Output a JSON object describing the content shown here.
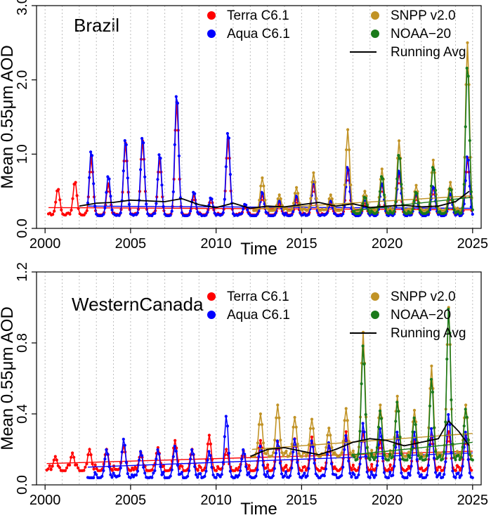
{
  "chart_data": [
    {
      "type": "line",
      "region": "Brazil",
      "xlabel": "Time",
      "ylabel": "Mean 0.55μm AOD",
      "xlim": [
        1999.5,
        2025.5
      ],
      "ylim": [
        0,
        3.0
      ],
      "xticks": [
        "2000",
        "2005",
        "2010",
        "2015",
        "2020",
        "2025"
      ],
      "yticks": [
        "0.0",
        "1.0",
        "2.0",
        "3.0"
      ],
      "legend": [
        "Terra C6.1",
        "Aqua C6.1",
        "SNPP v2.0",
        "NOAA−20",
        "Running Avg"
      ],
      "series": [
        {
          "name": "Terra C6.1",
          "color": "#ff0000",
          "start": 2000.2,
          "end": 2025.0,
          "base": 0.18,
          "peaks": [
            [
              2000.75,
              0.54
            ],
            [
              2001.75,
              0.64
            ],
            [
              2002.7,
              0.95
            ],
            [
              2003.7,
              0.6
            ],
            [
              2004.7,
              1.15
            ],
            [
              2005.7,
              1.18
            ],
            [
              2006.7,
              0.95
            ],
            [
              2007.7,
              1.7
            ],
            [
              2008.7,
              0.45
            ],
            [
              2009.7,
              0.4
            ],
            [
              2010.7,
              1.2
            ],
            [
              2011.7,
              0.3
            ],
            [
              2012.7,
              0.45
            ],
            [
              2013.7,
              0.35
            ],
            [
              2014.7,
              0.4
            ],
            [
              2015.7,
              0.6
            ],
            [
              2016.7,
              0.35
            ],
            [
              2017.7,
              0.8
            ],
            [
              2018.7,
              0.35
            ],
            [
              2019.7,
              0.6
            ],
            [
              2020.7,
              0.75
            ],
            [
              2021.7,
              0.45
            ],
            [
              2022.7,
              0.55
            ],
            [
              2023.7,
              0.45
            ],
            [
              2024.7,
              0.95
            ]
          ],
          "trend": [
            0.28,
            0.25
          ]
        },
        {
          "name": "Aqua C6.1",
          "color": "#0000ff",
          "start": 2002.5,
          "end": 2025.0,
          "base": 0.17,
          "peaks": [
            [
              2002.7,
              1.07
            ],
            [
              2003.7,
              0.72
            ],
            [
              2004.7,
              1.23
            ],
            [
              2005.7,
              1.26
            ],
            [
              2006.7,
              1.03
            ],
            [
              2007.7,
              1.85
            ],
            [
              2008.7,
              0.5
            ],
            [
              2009.7,
              0.42
            ],
            [
              2010.7,
              1.33
            ],
            [
              2011.7,
              0.33
            ],
            [
              2012.7,
              0.5
            ],
            [
              2013.7,
              0.38
            ],
            [
              2014.7,
              0.45
            ],
            [
              2015.7,
              0.65
            ],
            [
              2016.7,
              0.38
            ],
            [
              2017.7,
              0.85
            ],
            [
              2018.7,
              0.38
            ],
            [
              2019.7,
              0.62
            ],
            [
              2020.7,
              0.8
            ],
            [
              2021.7,
              0.48
            ],
            [
              2022.7,
              0.58
            ],
            [
              2023.7,
              0.48
            ],
            [
              2024.7,
              1.0
            ]
          ],
          "trend": [
            0.3,
            0.27
          ]
        },
        {
          "name": "SNPP v2.0",
          "color": "#c19326",
          "start": 2012.2,
          "end": 2025.0,
          "base": 0.24,
          "peaks": [
            [
              2012.7,
              0.68
            ],
            [
              2013.7,
              0.45
            ],
            [
              2014.7,
              0.55
            ],
            [
              2015.7,
              0.75
            ],
            [
              2016.7,
              0.45
            ],
            [
              2017.7,
              1.33
            ],
            [
              2018.7,
              0.5
            ],
            [
              2019.7,
              0.8
            ],
            [
              2020.7,
              1.18
            ],
            [
              2021.7,
              0.58
            ],
            [
              2022.7,
              0.92
            ],
            [
              2023.7,
              0.62
            ],
            [
              2024.7,
              2.5
            ]
          ],
          "trend": [
            0.26,
            0.44
          ]
        },
        {
          "name": "NOAA−20",
          "color": "#1a7a1a",
          "start": 2018.0,
          "end": 2025.0,
          "base": 0.2,
          "peaks": [
            [
              2018.7,
              0.43
            ],
            [
              2019.7,
              0.72
            ],
            [
              2020.7,
              1.02
            ],
            [
              2021.7,
              0.5
            ],
            [
              2022.7,
              0.85
            ],
            [
              2023.7,
              0.55
            ],
            [
              2024.7,
              2.25
            ]
          ],
          "trend": [
            0.24,
            0.42
          ]
        },
        {
          "name": "Running Avg",
          "color": "#000000",
          "x": [
            2002.0,
            2003.0,
            2004.0,
            2005.0,
            2006.0,
            2007.0,
            2008.0,
            2009.0,
            2010.0,
            2011.0,
            2012.0,
            2013.0,
            2014.0,
            2015.0,
            2016.0,
            2017.0,
            2018.0,
            2019.0,
            2020.0,
            2021.0,
            2022.0,
            2023.0,
            2024.0,
            2024.8
          ],
          "values": [
            0.3,
            0.34,
            0.35,
            0.38,
            0.37,
            0.36,
            0.4,
            0.32,
            0.28,
            0.34,
            0.27,
            0.3,
            0.29,
            0.32,
            0.35,
            0.3,
            0.33,
            0.28,
            0.3,
            0.31,
            0.29,
            0.3,
            0.36,
            0.5
          ]
        }
      ]
    },
    {
      "type": "line",
      "region": "WesternCanada",
      "xlabel": "Time",
      "ylabel": "Mean 0.55μm AOD",
      "xlim": [
        1999.5,
        2025.5
      ],
      "ylim": [
        0,
        1.2
      ],
      "xticks": [
        "2000",
        "2005",
        "2010",
        "2015",
        "2020",
        "2025"
      ],
      "yticks": [
        "0.0",
        "0.4",
        "0.8",
        "1.2"
      ],
      "legend": [
        "Terra C6.1",
        "Aqua C6.1",
        "SNPP v2.0",
        "NOAA−20",
        "Running Avg"
      ],
      "series": [
        {
          "name": "Terra C6.1",
          "color": "#ff0000",
          "start": 2000.1,
          "end": 2025.0,
          "base": 0.08,
          "peaks": [
            [
              2000.6,
              0.16
            ],
            [
              2001.6,
              0.18
            ],
            [
              2002.6,
              0.2
            ],
            [
              2003.6,
              0.2
            ],
            [
              2004.6,
              0.22
            ],
            [
              2005.6,
              0.18
            ],
            [
              2006.6,
              0.21
            ],
            [
              2007.6,
              0.25
            ],
            [
              2008.6,
              0.2
            ],
            [
              2009.6,
              0.28
            ],
            [
              2010.6,
              0.2
            ],
            [
              2011.6,
              0.19
            ],
            [
              2012.6,
              0.25
            ],
            [
              2013.6,
              0.24
            ],
            [
              2014.6,
              0.26
            ],
            [
              2015.6,
              0.27
            ],
            [
              2016.6,
              0.22
            ],
            [
              2017.6,
              0.3
            ],
            [
              2018.6,
              0.3
            ],
            [
              2019.6,
              0.25
            ],
            [
              2020.6,
              0.28
            ],
            [
              2021.6,
              0.25
            ],
            [
              2022.6,
              0.28
            ],
            [
              2023.6,
              0.3
            ],
            [
              2024.6,
              0.28
            ]
          ],
          "trend": [
            0.12,
            0.19
          ]
        },
        {
          "name": "Aqua C6.1",
          "color": "#0000ff",
          "start": 2002.5,
          "end": 2025.0,
          "base": 0.04,
          "peaks": [
            [
              2003.6,
              0.2
            ],
            [
              2004.6,
              0.26
            ],
            [
              2005.6,
              0.19
            ],
            [
              2006.6,
              0.2
            ],
            [
              2007.6,
              0.22
            ],
            [
              2008.6,
              0.2
            ],
            [
              2009.6,
              0.19
            ],
            [
              2010.6,
              0.39
            ],
            [
              2011.6,
              0.2
            ],
            [
              2012.6,
              0.22
            ],
            [
              2013.6,
              0.25
            ],
            [
              2014.6,
              0.26
            ],
            [
              2015.6,
              0.25
            ],
            [
              2016.6,
              0.24
            ],
            [
              2017.6,
              0.28
            ],
            [
              2018.6,
              0.35
            ],
            [
              2019.6,
              0.32
            ],
            [
              2020.6,
              0.3
            ],
            [
              2021.6,
              0.3
            ],
            [
              2022.6,
              0.32
            ],
            [
              2023.6,
              0.4
            ],
            [
              2024.6,
              0.3
            ]
          ],
          "trend": [
            0.1,
            0.18
          ]
        },
        {
          "name": "SNPP v2.0",
          "color": "#c19326",
          "start": 2012.1,
          "end": 2025.0,
          "base": 0.16,
          "peaks": [
            [
              2012.6,
              0.4
            ],
            [
              2013.6,
              0.45
            ],
            [
              2014.6,
              0.38
            ],
            [
              2015.6,
              0.37
            ],
            [
              2016.6,
              0.32
            ],
            [
              2017.6,
              0.43
            ],
            [
              2018.6,
              0.86
            ],
            [
              2019.6,
              0.45
            ],
            [
              2020.6,
              0.5
            ],
            [
              2021.6,
              0.42
            ],
            [
              2022.6,
              0.67
            ],
            [
              2023.6,
              1.0
            ],
            [
              2024.6,
              0.45
            ]
          ],
          "trend": [
            0.2,
            0.29
          ]
        },
        {
          "name": "NOAA−20",
          "color": "#1a7a1a",
          "start": 2018.0,
          "end": 2025.0,
          "base": 0.14,
          "peaks": [
            [
              2018.6,
              0.79
            ],
            [
              2019.6,
              0.42
            ],
            [
              2020.6,
              0.47
            ],
            [
              2021.6,
              0.38
            ],
            [
              2022.6,
              0.6
            ],
            [
              2023.6,
              1.0
            ],
            [
              2024.6,
              0.43
            ]
          ],
          "trend": [
            0.17,
            0.24
          ]
        },
        {
          "name": "Running Avg",
          "color": "#000000",
          "x": [
            2012.0,
            2013.0,
            2014.0,
            2015.0,
            2016.0,
            2017.0,
            2018.0,
            2019.0,
            2020.0,
            2021.0,
            2022.0,
            2023.0,
            2023.6,
            2024.2,
            2024.8
          ],
          "values": [
            0.16,
            0.2,
            0.21,
            0.19,
            0.17,
            0.2,
            0.24,
            0.26,
            0.25,
            0.22,
            0.24,
            0.26,
            0.36,
            0.3,
            0.22
          ]
        }
      ]
    }
  ]
}
